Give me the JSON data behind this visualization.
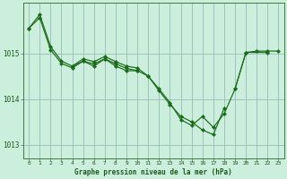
{
  "title": "Graphe pression niveau de la mer (hPa)",
  "bg_color": "#cceedd",
  "grid_color": "#99bbbb",
  "line_color": "#1a6b1a",
  "marker_color": "#1a6b1a",
  "xlim": [
    -0.5,
    23.5
  ],
  "ylim": [
    1012.7,
    1016.1
  ],
  "yticks": [
    1013,
    1014,
    1015
  ],
  "xtick_labels": [
    "0",
    "1",
    "2",
    "3",
    "4",
    "5",
    "6",
    "7",
    "8",
    "9",
    "10",
    "11",
    "12",
    "13",
    "14",
    "15",
    "16",
    "17",
    "18",
    "19",
    "20",
    "21",
    "22",
    "23"
  ],
  "series": [
    {
      "x": [
        0,
        1,
        2,
        3,
        4,
        5,
        6,
        7,
        8,
        9,
        10,
        11,
        12,
        13,
        14,
        15,
        16,
        17,
        18
      ],
      "y": [
        1015.55,
        1015.85,
        1015.15,
        1014.83,
        1014.72,
        1014.88,
        1014.82,
        1014.93,
        1014.82,
        1014.72,
        1014.68,
        1014.5,
        1014.18,
        1013.88,
        1013.62,
        1013.5,
        1013.32,
        1013.22,
        1013.8
      ]
    },
    {
      "x": [
        0,
        1,
        2,
        3,
        4,
        5,
        6,
        7,
        8,
        9,
        10
      ],
      "y": [
        1015.55,
        1015.78,
        1015.08,
        1014.78,
        1014.68,
        1014.83,
        1014.72,
        1014.88,
        1014.72,
        1014.62,
        1014.62
      ]
    },
    {
      "x": [
        4,
        5,
        6,
        7,
        8,
        9,
        10,
        11,
        12,
        13,
        14,
        15,
        16,
        17,
        18,
        19,
        20,
        22
      ],
      "y": [
        1014.72,
        1014.83,
        1014.77,
        1014.88,
        1014.77,
        1014.67,
        1014.62,
        1014.5,
        1014.22,
        1013.92,
        1013.55,
        1013.42,
        1013.62,
        1013.38,
        1013.68,
        1014.22,
        1015.02,
        1015.02
      ]
    },
    {
      "x": [
        19,
        20,
        21,
        22,
        23
      ],
      "y": [
        1014.22,
        1015.02,
        1015.05,
        1015.05,
        1015.05
      ]
    }
  ]
}
